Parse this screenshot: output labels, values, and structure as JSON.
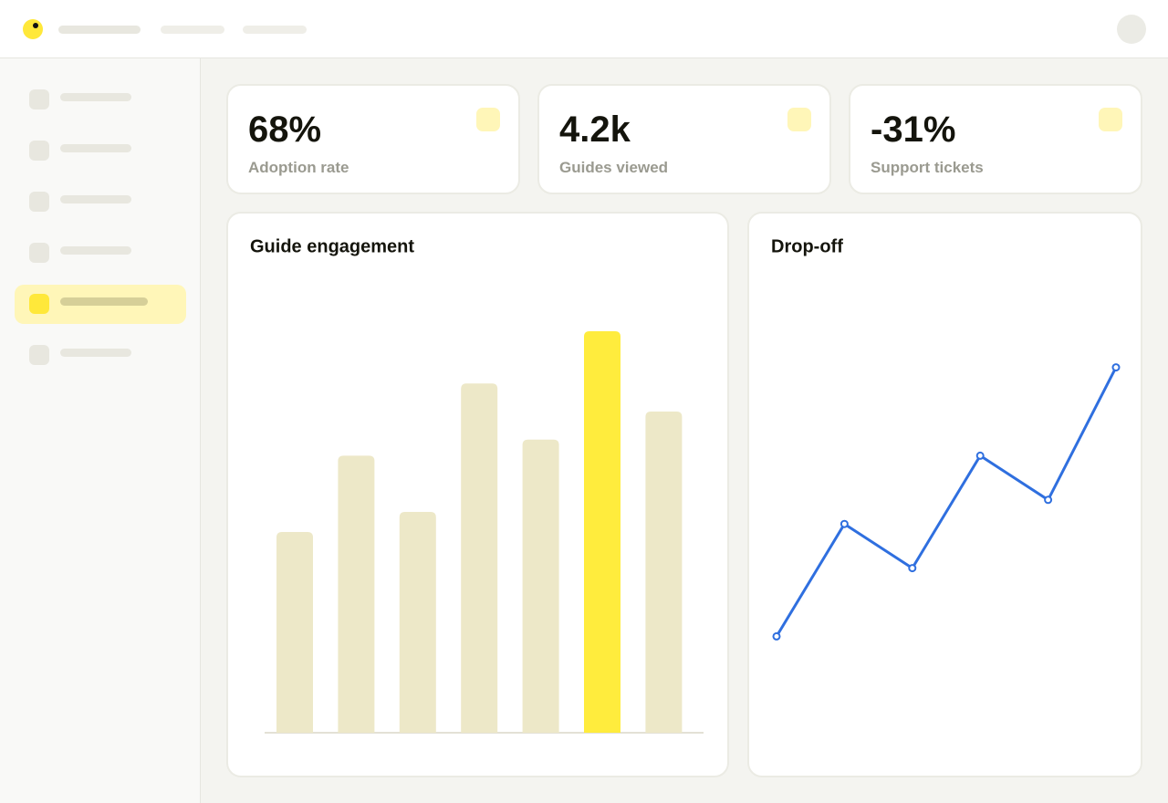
{
  "kpis": [
    {
      "value": "68%",
      "label": "Adoption rate"
    },
    {
      "value": "4.2k",
      "label": "Guides viewed"
    },
    {
      "value": "-31%",
      "label": "Support tickets"
    }
  ],
  "chart_data": [
    {
      "type": "bar",
      "title": "Guide engagement",
      "categories": [
        null,
        null,
        null,
        null,
        null,
        null,
        null
      ],
      "values": [
        50,
        69,
        55,
        87,
        73,
        100,
        80
      ],
      "colors": [
        "#ede8c8",
        "#ede8c8",
        "#ede8c8",
        "#ede8c8",
        "#ede8c8",
        "#ffec3d",
        "#ede8c8"
      ],
      "ylim": [
        0,
        100
      ]
    },
    {
      "type": "line",
      "title": "Drop-off",
      "categories": [
        null,
        null,
        null,
        null,
        null,
        null
      ],
      "values": [
        24,
        52,
        41,
        69,
        58,
        91
      ],
      "color": "#2f6fdf",
      "ylim": [
        0,
        100
      ]
    }
  ]
}
